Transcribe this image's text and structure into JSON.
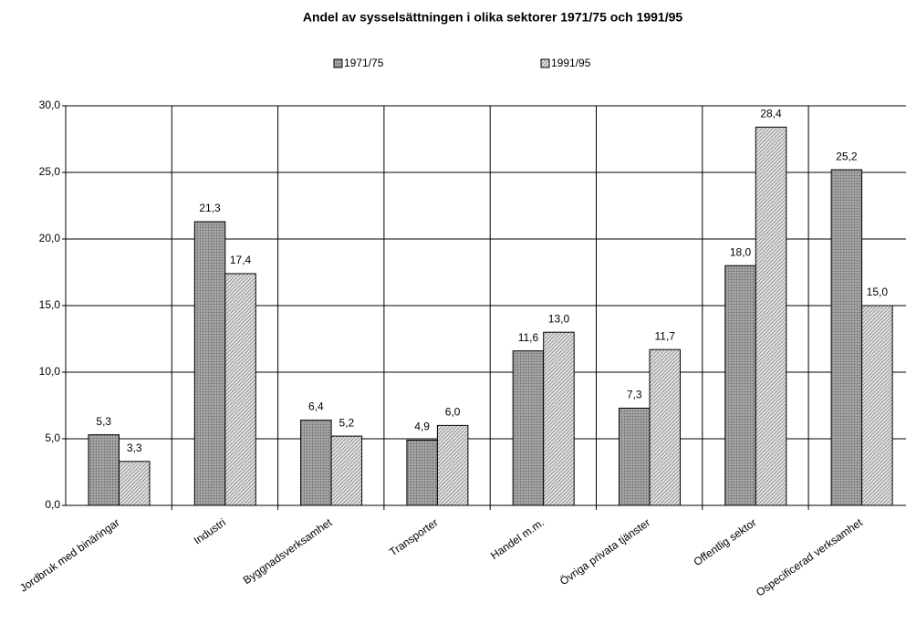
{
  "chart_data": {
    "type": "bar",
    "title": "Andel av sysselsättningen i olika sektorer 1971/75 och 1991/95",
    "categories": [
      "Jordbruk med binäringar",
      "Industri",
      "Byggnadsverksamhet",
      "Transporter",
      "Handel m.m.",
      "Övriga privata tjänster",
      "Offentlig sektor",
      "Ospecificerad verksamhet"
    ],
    "series": [
      {
        "name": "1971/75",
        "color": "#a0a0a0",
        "values": [
          5.3,
          21.3,
          6.4,
          4.9,
          11.6,
          7.3,
          18.0,
          25.2
        ],
        "value_labels": [
          "5,3",
          "21,3",
          "6,4",
          "4,9",
          "11,6",
          "7,3",
          "18,0",
          "25,2"
        ]
      },
      {
        "name": "1991/95",
        "color": "#e0e0e0",
        "values": [
          3.3,
          17.4,
          5.2,
          6.0,
          13.0,
          11.7,
          28.4,
          15.0
        ],
        "value_labels": [
          "3,3",
          "17,4",
          "5,2",
          "6,0",
          "13,0",
          "11,7",
          "28,4",
          "15,0"
        ]
      }
    ],
    "ylim": [
      0,
      30
    ],
    "yticks": [
      {
        "value": 0,
        "label": "0,0"
      },
      {
        "value": 5,
        "label": "5,0"
      },
      {
        "value": 10,
        "label": "10,0"
      },
      {
        "value": 15,
        "label": "15,0"
      },
      {
        "value": 20,
        "label": "20,0"
      },
      {
        "value": 25,
        "label": "25,0"
      },
      {
        "value": 30,
        "label": "30,0"
      }
    ],
    "grid": true,
    "legend": "top"
  }
}
